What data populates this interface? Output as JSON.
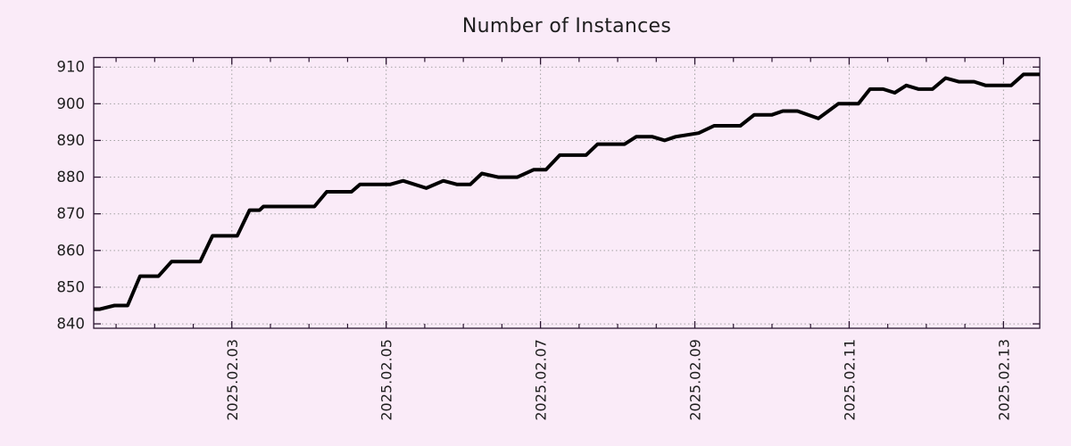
{
  "chart_data": {
    "type": "line",
    "title": "Number of Instances",
    "x_axis": {
      "tick_labels": [
        "2025.02.03",
        "2025.02.05",
        "2025.02.07",
        "2025.02.09",
        "2025.02.11",
        "2025.02.13"
      ],
      "tick_days": [
        2,
        4,
        6,
        8,
        10,
        12
      ],
      "minor_step_days": 0.5,
      "range_days": [
        0.21,
        12.47
      ],
      "x_unit": "days since 2025-02-01"
    },
    "y_axis": {
      "ticks": [
        840,
        850,
        860,
        870,
        880,
        890,
        900,
        910
      ],
      "range": [
        838.8,
        912.6
      ]
    },
    "grid": true,
    "legend": "none",
    "series": [
      {
        "name": "instances",
        "color": "#000000",
        "x_days": [
          0.21,
          0.29,
          0.48,
          0.65,
          0.81,
          1.05,
          1.22,
          1.59,
          1.75,
          2.07,
          2.23,
          2.36,
          2.41,
          3.07,
          3.23,
          3.55,
          3.66,
          4.05,
          4.22,
          4.52,
          4.74,
          4.92,
          5.09,
          5.24,
          5.45,
          5.7,
          5.91,
          6.07,
          6.25,
          6.59,
          6.74,
          7.09,
          7.24,
          7.45,
          7.61,
          7.75,
          8.05,
          8.25,
          8.59,
          8.77,
          9.0,
          9.14,
          9.33,
          9.6,
          9.86,
          10.12,
          10.27,
          10.44,
          10.59,
          10.74,
          10.9,
          11.08,
          11.25,
          11.42,
          11.62,
          11.77,
          11.91,
          12.1,
          12.26,
          12.38,
          12.47
        ],
        "values": [
          844,
          844,
          845,
          845,
          853,
          853,
          857,
          857,
          864,
          864,
          871,
          871,
          872,
          872,
          876,
          876,
          878,
          878,
          879,
          877,
          879,
          878,
          878,
          881,
          880,
          880,
          882,
          882,
          886,
          886,
          889,
          889,
          891,
          891,
          890,
          891,
          892,
          894,
          894,
          897,
          897,
          898,
          898,
          896,
          900,
          900,
          904,
          904,
          903,
          905,
          904,
          904,
          907,
          906,
          906,
          905,
          905,
          905,
          908,
          908,
          908
        ]
      }
    ],
    "colors": {
      "background": "#FAEBF8",
      "border": "#2A1430",
      "grid": "#A3A3A3",
      "line": "#000000",
      "text": "#1E1E1E"
    }
  }
}
